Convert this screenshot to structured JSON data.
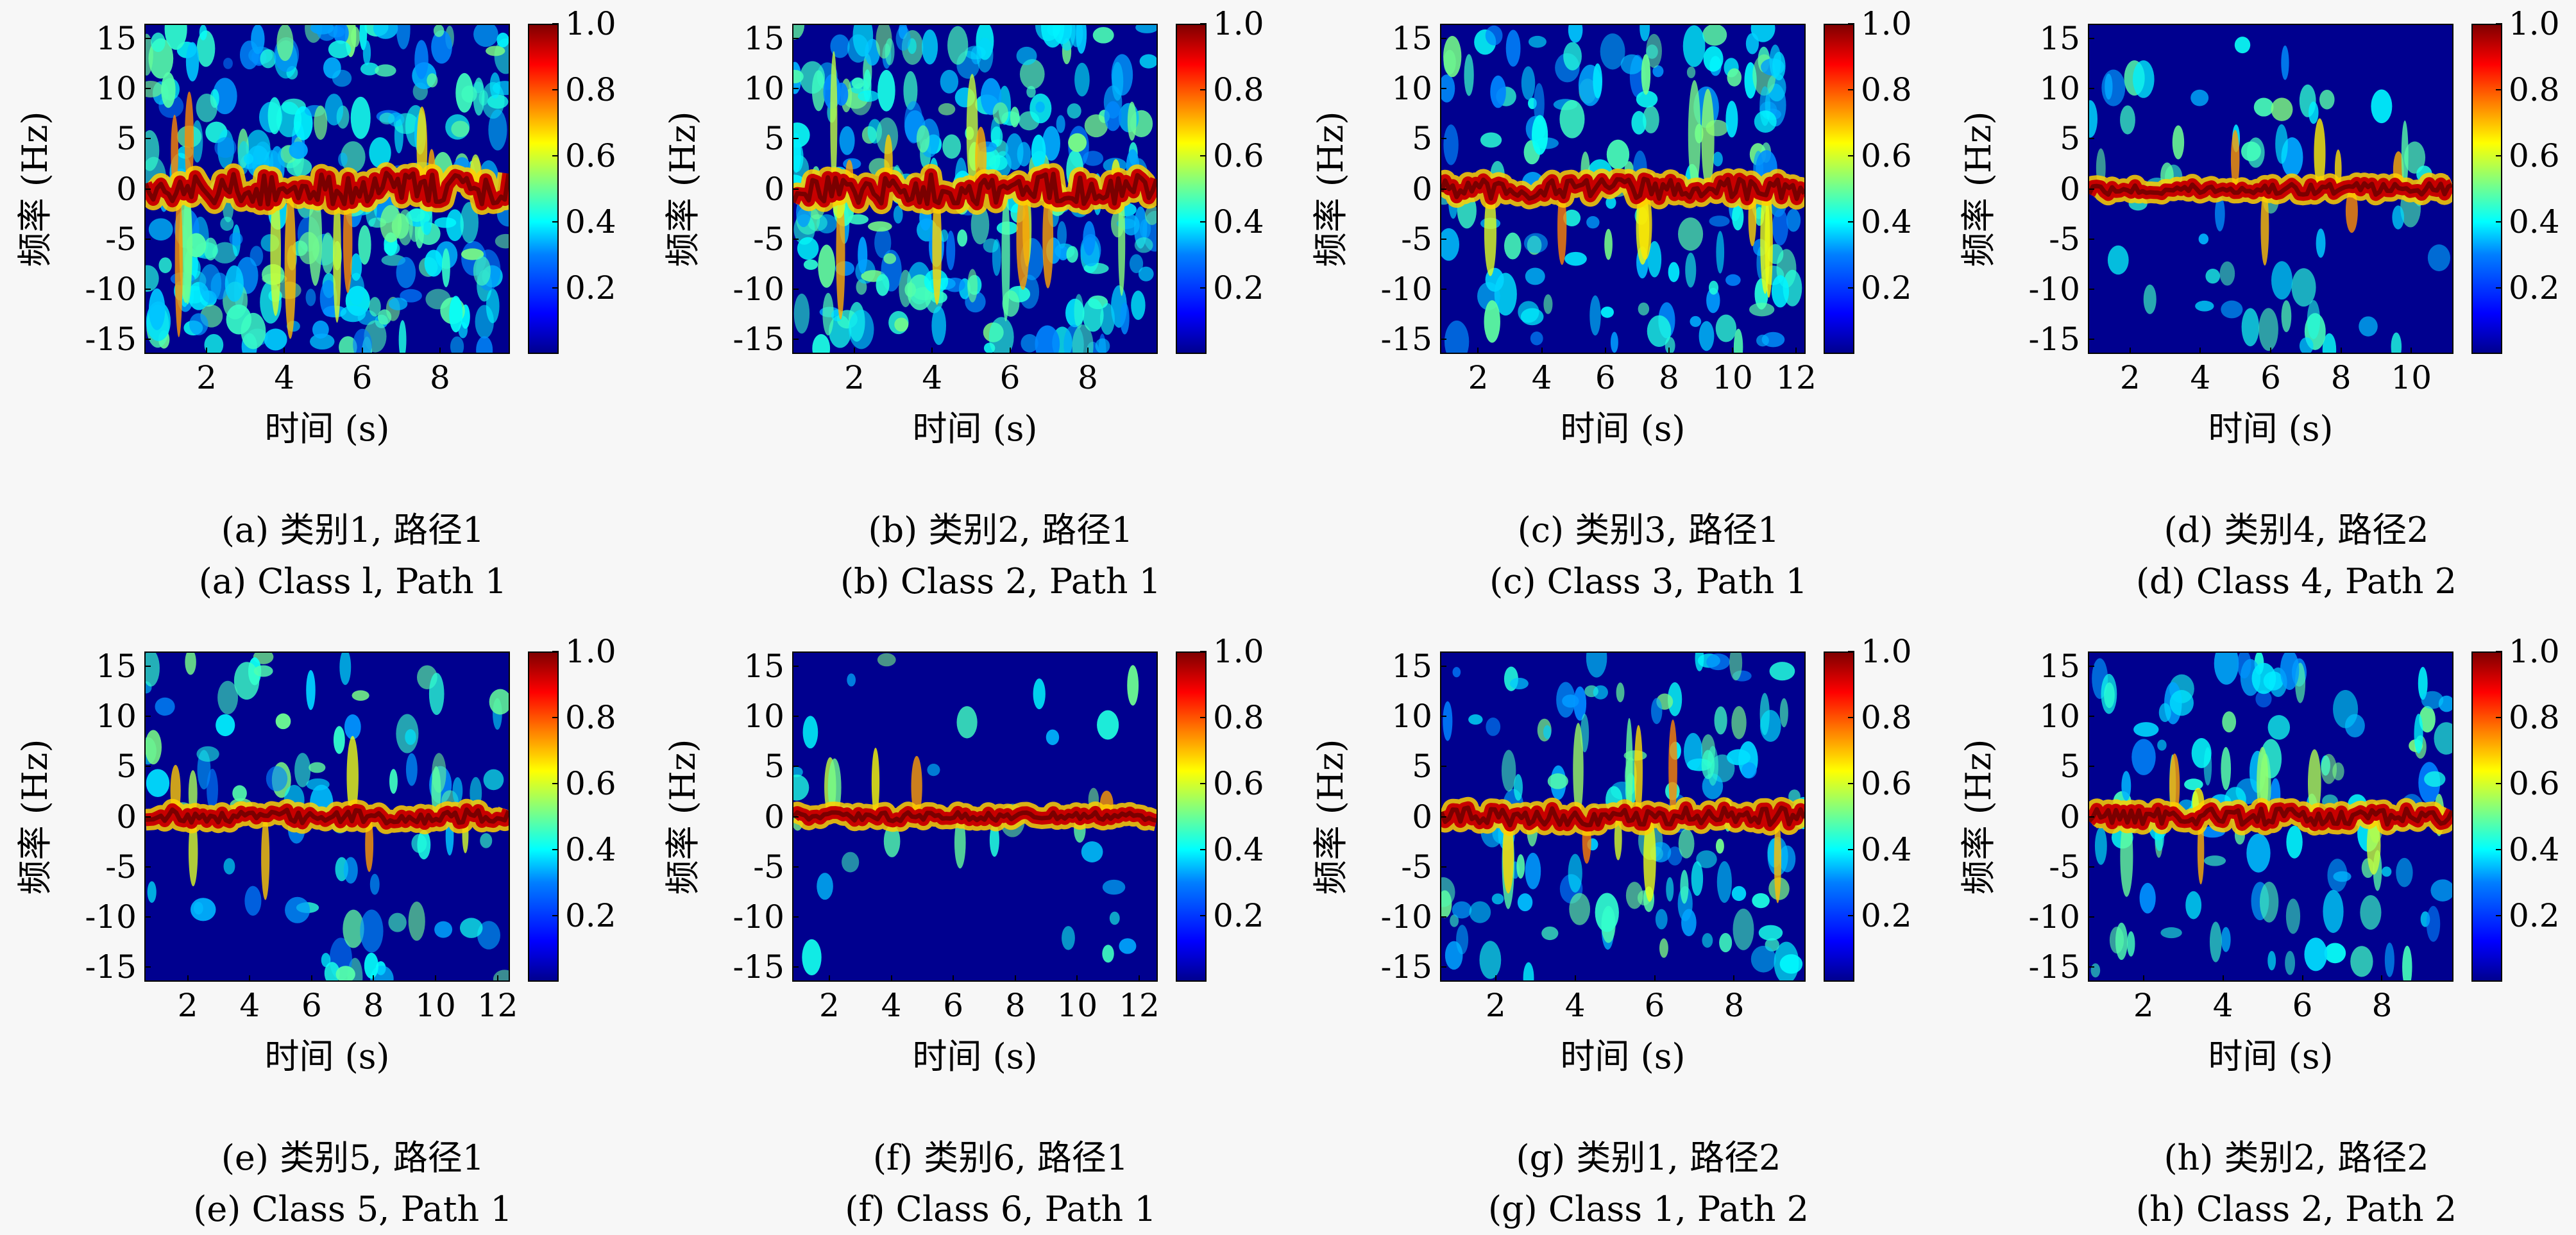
{
  "chart_data": [
    {
      "type": "heatmap",
      "xlabel": "时间 (s)",
      "ylabel": "频率 (Hz)",
      "xticks": [
        2,
        4,
        6,
        8
      ],
      "xlim": [
        0.4,
        9.8
      ],
      "yticks": [
        15,
        10,
        5,
        0,
        -5,
        -10,
        -15
      ],
      "ylim": [
        -16.5,
        16.5
      ],
      "colorbar_ticks": [
        1.0,
        0.8,
        0.6,
        0.4,
        0.2
      ],
      "colorbar_range": [
        0,
        1
      ],
      "caption_cn": "(a) 类别1, 路径1",
      "caption_en": "(a) Class l, Path 1",
      "density": 1.0,
      "seed": 11
    },
    {
      "type": "heatmap",
      "xlabel": "时间 (s)",
      "ylabel": "频率 (Hz)",
      "xticks": [
        2,
        4,
        6,
        8
      ],
      "xlim": [
        0.4,
        9.8
      ],
      "yticks": [
        15,
        10,
        5,
        0,
        -5,
        -10,
        -15
      ],
      "ylim": [
        -16.5,
        16.5
      ],
      "colorbar_ticks": [
        1.0,
        0.8,
        0.6,
        0.4,
        0.2
      ],
      "colorbar_range": [
        0,
        1
      ],
      "caption_cn": "(b) 类别2, 路径1",
      "caption_en": "(b) Class 2, Path 1",
      "density": 0.95,
      "seed": 23
    },
    {
      "type": "heatmap",
      "xlabel": "时间 (s)",
      "ylabel": "频率 (Hz)",
      "xticks": [
        2,
        4,
        6,
        8,
        10,
        12
      ],
      "xlim": [
        0.8,
        12.3
      ],
      "yticks": [
        15,
        10,
        5,
        0,
        -5,
        -10,
        -15
      ],
      "ylim": [
        -16.5,
        16.5
      ],
      "colorbar_ticks": [
        1.0,
        0.8,
        0.6,
        0.4,
        0.2
      ],
      "colorbar_range": [
        0,
        1
      ],
      "caption_cn": "(c) 类别3, 路径1",
      "caption_en": "(c) Class 3, Path 1",
      "density": 0.55,
      "seed": 37
    },
    {
      "type": "heatmap",
      "xlabel": "时间 (s)",
      "ylabel": "频率 (Hz)",
      "xticks": [
        2,
        4,
        6,
        8,
        10
      ],
      "xlim": [
        0.8,
        11.2
      ],
      "yticks": [
        15,
        10,
        5,
        0,
        -5,
        -10,
        -15
      ],
      "ylim": [
        -16.5,
        16.5
      ],
      "colorbar_ticks": [
        1.0,
        0.8,
        0.6,
        0.4,
        0.2
      ],
      "colorbar_range": [
        0,
        1
      ],
      "caption_cn": "(d) 类别4, 路径2",
      "caption_en": "(d) Class 4, Path 2",
      "density": 0.2,
      "seed": 41
    },
    {
      "type": "heatmap",
      "xlabel": "时间 (s)",
      "ylabel": "频率 (Hz)",
      "xticks": [
        2,
        4,
        6,
        8,
        10,
        12
      ],
      "xlim": [
        0.6,
        12.4
      ],
      "yticks": [
        15,
        10,
        5,
        0,
        -5,
        -10,
        -15
      ],
      "ylim": [
        -16.5,
        16.5
      ],
      "colorbar_ticks": [
        1.0,
        0.8,
        0.6,
        0.4,
        0.2
      ],
      "colorbar_range": [
        0,
        1
      ],
      "caption_cn": "(e) 类别5, 路径1",
      "caption_en": "(e) Class 5, Path 1",
      "density": 0.3,
      "seed": 53
    },
    {
      "type": "heatmap",
      "xlabel": "时间 (s)",
      "ylabel": "频率 (Hz)",
      "xticks": [
        2,
        4,
        6,
        8,
        10,
        12
      ],
      "xlim": [
        0.8,
        12.6
      ],
      "yticks": [
        15,
        10,
        5,
        0,
        -5,
        -10,
        -15
      ],
      "ylim": [
        -16.5,
        16.5
      ],
      "colorbar_ticks": [
        1.0,
        0.8,
        0.6,
        0.4,
        0.2
      ],
      "colorbar_range": [
        0,
        1
      ],
      "caption_cn": "(f) 类别6, 路径1",
      "caption_en": "(f) Class 6, Path 1",
      "density": 0.1,
      "seed": 67
    },
    {
      "type": "heatmap",
      "xlabel": "时间 (s)",
      "ylabel": "频率 (Hz)",
      "xticks": [
        2,
        4,
        6,
        8
      ],
      "xlim": [
        0.6,
        9.8
      ],
      "yticks": [
        15,
        10,
        5,
        0,
        -5,
        -10,
        -15
      ],
      "ylim": [
        -16.5,
        16.5
      ],
      "colorbar_ticks": [
        1.0,
        0.8,
        0.6,
        0.4,
        0.2
      ],
      "colorbar_range": [
        0,
        1
      ],
      "caption_cn": "(g) 类别1, 路径2",
      "caption_en": "(g) Class 1, Path 2",
      "density": 0.45,
      "seed": 71
    },
    {
      "type": "heatmap",
      "xlabel": "时间 (s)",
      "ylabel": "频率 (Hz)",
      "xticks": [
        2,
        4,
        6,
        8
      ],
      "xlim": [
        0.6,
        9.8
      ],
      "yticks": [
        15,
        10,
        5,
        0,
        -5,
        -10,
        -15
      ],
      "ylim": [
        -16.5,
        16.5
      ],
      "colorbar_ticks": [
        1.0,
        0.8,
        0.6,
        0.4,
        0.2
      ],
      "colorbar_range": [
        0,
        1
      ],
      "caption_cn": "(h) 类别2, 路径2",
      "caption_en": "(h) Class 2, Path 2",
      "density": 0.4,
      "seed": 83
    }
  ]
}
